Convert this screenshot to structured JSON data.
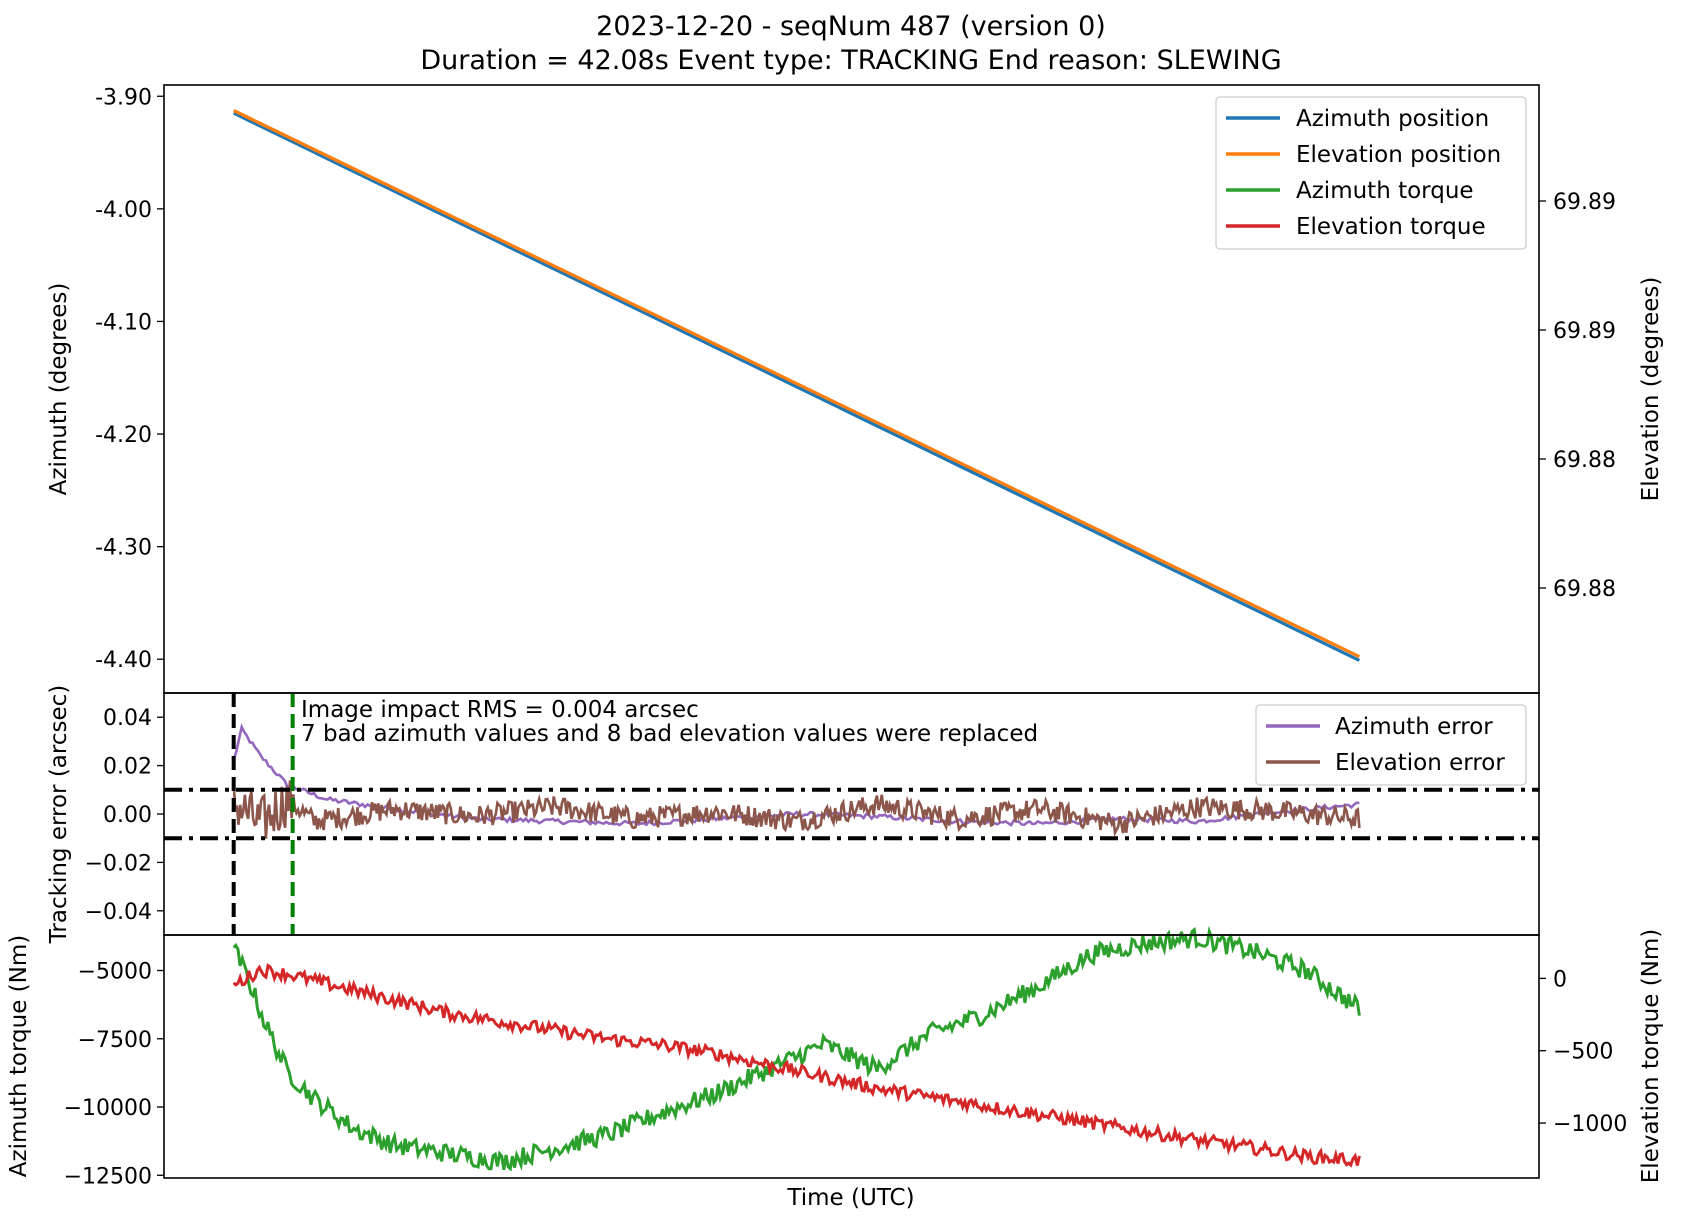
{
  "figure": {
    "title_line1": "2023-12-20 - seqNum 487 (version 0)",
    "title_line2": "Duration = 42.08s Event type: TRACKING End reason: SLEWING",
    "xlabel": "Time (UTC)"
  },
  "colors": {
    "azimuth_position": "#1f77b4",
    "elevation_position": "#ff7f0e",
    "azimuth_torque": "#2ca02c",
    "elevation_torque": "#d62728",
    "azimuth_error": "#9467bd",
    "elevation_error": "#8c564b",
    "threshold": "#000000",
    "slew_end": "#000000",
    "settle": "#008000"
  },
  "chart_data": [
    {
      "type": "line",
      "panel": "position",
      "ylabel": "Azimuth (degrees)",
      "ylabel_right": "Elevation (degrees)",
      "ylim": [
        -4.43,
        -3.89
      ],
      "yticks": [
        -3.9,
        -4.0,
        -4.1,
        -4.2,
        -4.3,
        -4.4
      ],
      "ytick_labels": [
        "-3.90",
        "-4.00",
        "-4.10",
        "-4.20",
        "-4.30",
        "-4.40"
      ],
      "yticks_right": [
        "69.89",
        "69.89",
        "69.88",
        "69.88"
      ],
      "x": [
        0,
        42.08
      ],
      "series": [
        {
          "name": "Azimuth position",
          "axis": "left",
          "x": [
            0,
            42.08
          ],
          "values": [
            -3.915,
            -4.402
          ]
        },
        {
          "name": "Elevation position",
          "axis": "left",
          "x": [
            0,
            42.08
          ],
          "values": [
            -3.914,
            -4.4
          ]
        }
      ],
      "legend": [
        "Azimuth position",
        "Elevation position",
        "Azimuth torque",
        "Elevation torque"
      ],
      "legend_position": "upper right",
      "grid": false
    },
    {
      "type": "line",
      "panel": "tracking_error",
      "ylabel": "Tracking error (arcsec)",
      "ylim": [
        -0.05,
        0.05
      ],
      "yticks": [
        0.04,
        0.02,
        0.0,
        -0.02,
        -0.04
      ],
      "ytick_labels": [
        "0.04",
        "0.02",
        "0.00",
        "−0.02",
        "−0.04"
      ],
      "annotation_line1": "Image impact RMS = 0.004 arcsec",
      "annotation_line2": "7 bad azimuth values and 8 bad elevation values were replaced",
      "thresholds": [
        0.01,
        -0.01
      ],
      "vlines": [
        0.0,
        2.2
      ],
      "series": [
        {
          "name": "Azimuth error",
          "x": [
            0,
            0.3,
            1.0,
            2.0,
            3.5,
            6,
            9,
            12,
            15,
            18,
            21,
            24,
            27,
            30,
            33,
            36,
            39,
            42
          ],
          "values": [
            0.022,
            0.035,
            0.024,
            0.012,
            0.006,
            0.002,
            -0.002,
            -0.003,
            -0.004,
            -0.002,
            0.0,
            -0.001,
            -0.003,
            -0.004,
            -0.002,
            -0.003,
            0.001,
            0.004
          ]
        },
        {
          "name": "Elevation error",
          "x": [
            0,
            1,
            2,
            3,
            6,
            9,
            12,
            15,
            18,
            21,
            24,
            27,
            30,
            33,
            36,
            39,
            42
          ],
          "values": [
            0.005,
            -0.004,
            0.006,
            -0.003,
            0.002,
            -0.001,
            0.003,
            -0.002,
            0.001,
            -0.003,
            0.004,
            -0.002,
            0.002,
            -0.004,
            0.003,
            0.001,
            -0.002
          ]
        }
      ],
      "legend": [
        "Azimuth error",
        "Elevation error"
      ],
      "legend_position": "upper right",
      "grid": false
    },
    {
      "type": "line",
      "panel": "torque",
      "ylabel": "Azimuth torque (Nm)",
      "ylabel_right": "Elevation torque (Nm)",
      "ylim": [
        -12600,
        -3700
      ],
      "yticks": [
        -5000,
        -7500,
        -10000,
        -12500
      ],
      "ytick_labels": [
        "−5000",
        "−7500",
        "−10000",
        "−12500"
      ],
      "ylim_right": [
        -1380,
        300
      ],
      "yticks_right": [
        0,
        -500,
        -1000
      ],
      "ytick_right_labels": [
        "0",
        "−500",
        "−1000"
      ],
      "series": [
        {
          "name": "Azimuth torque",
          "axis": "left",
          "x": [
            0,
            0.5,
            1.2,
            2.0,
            3.0,
            4.5,
            6,
            8,
            10,
            12,
            14,
            16,
            18,
            20,
            22,
            24,
            26,
            28,
            30,
            32,
            34,
            36,
            38,
            40,
            41,
            42
          ],
          "values": [
            -4200,
            -5200,
            -7000,
            -8700,
            -9700,
            -10800,
            -11400,
            -11700,
            -12000,
            -11500,
            -11000,
            -10200,
            -9500,
            -8600,
            -7700,
            -8600,
            -7300,
            -6600,
            -5600,
            -4400,
            -4000,
            -3800,
            -4300,
            -5000,
            -5700,
            -6400
          ]
        },
        {
          "name": "Elevation torque",
          "axis": "right",
          "x": [
            0,
            1,
            2,
            4,
            6,
            8,
            10,
            12,
            14,
            16,
            18,
            20,
            22,
            24,
            26,
            28,
            30,
            32,
            34,
            36,
            38,
            40,
            42
          ],
          "values": [
            -50,
            60,
            30,
            -60,
            -150,
            -240,
            -300,
            -360,
            -420,
            -460,
            -520,
            -600,
            -680,
            -760,
            -820,
            -880,
            -940,
            -1000,
            -1060,
            -1120,
            -1170,
            -1230,
            -1260
          ]
        }
      ],
      "grid": false
    }
  ]
}
